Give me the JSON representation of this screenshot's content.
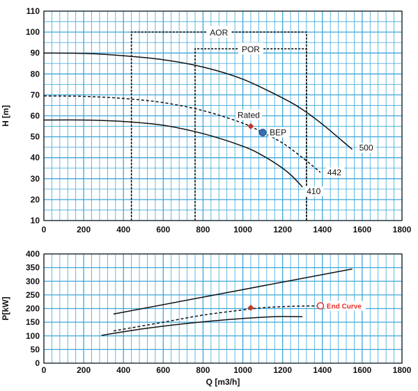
{
  "chart_data": [
    {
      "type": "line",
      "xlabel": "",
      "ylabel": "H [m]",
      "xlim": [
        0,
        1800
      ],
      "ylim": [
        10,
        110
      ],
      "x_ticks": [
        0,
        200,
        400,
        600,
        800,
        1000,
        1200,
        1400,
        1600,
        1800
      ],
      "y_ticks": [
        10,
        20,
        30,
        40,
        50,
        60,
        70,
        80,
        90,
        100,
        110
      ],
      "grid": true,
      "series": [
        {
          "name": "500",
          "style": "solid",
          "x": [
            0,
            200,
            400,
            600,
            800,
            1000,
            1200,
            1300,
            1400,
            1500,
            1550
          ],
          "y": [
            90,
            89.8,
            88.7,
            86.8,
            83.3,
            77.5,
            68.5,
            63,
            56,
            48,
            44
          ]
        },
        {
          "name": "442",
          "style": "dashed",
          "x": [
            0,
            200,
            400,
            600,
            800,
            1000,
            1100,
            1200,
            1300,
            1390
          ],
          "y": [
            69.5,
            69.3,
            68.3,
            66.3,
            62.5,
            56.5,
            52,
            47,
            40,
            33
          ]
        },
        {
          "name": "410",
          "style": "solid",
          "x": [
            0,
            200,
            400,
            600,
            800,
            1000,
            1100,
            1200,
            1250,
            1300
          ],
          "y": [
            58,
            58,
            57.3,
            55.5,
            51.5,
            45.5,
            41,
            35,
            31,
            26
          ]
        }
      ],
      "regions": [
        {
          "label": "AOR",
          "x": [
            440,
            1320
          ],
          "top": 100
        },
        {
          "label": "POR",
          "x": [
            760,
            1320
          ],
          "top": 92
        }
      ],
      "points": [
        {
          "label": "Rated",
          "x": 1040,
          "y": 55,
          "marker": "diamond",
          "color": "#c0392b"
        },
        {
          "label": "BEP",
          "x": 1100,
          "y": 52,
          "marker": "circle",
          "color": "#3a6fb0"
        }
      ],
      "colors": {
        "grid": "#3ea6d8",
        "curve": "#111111"
      }
    },
    {
      "type": "line",
      "xlabel": "Q [m3/h]",
      "ylabel": "P[kW]",
      "xlim": [
        0,
        1800
      ],
      "ylim": [
        0,
        400
      ],
      "x_ticks": [
        0,
        200,
        400,
        600,
        800,
        1000,
        1200,
        1400,
        1600,
        1800
      ],
      "y_ticks": [
        0,
        50,
        100,
        150,
        200,
        250,
        300,
        350,
        400
      ],
      "grid": true,
      "series": [
        {
          "name": "500",
          "style": "solid",
          "x": [
            350,
            1550
          ],
          "y": [
            180,
            345
          ]
        },
        {
          "name": "442",
          "style": "dashed",
          "x": [
            350,
            600,
            800,
            1000,
            1100,
            1200,
            1300,
            1400
          ],
          "y": [
            118,
            150,
            176,
            195,
            203,
            207,
            209,
            210
          ]
        },
        {
          "name": "410",
          "style": "solid",
          "x": [
            290,
            500,
            700,
            900,
            1050,
            1150,
            1200,
            1300
          ],
          "y": [
            102,
            126,
            144,
            158,
            166,
            170,
            171,
            170
          ]
        }
      ],
      "points": [
        {
          "label": "",
          "x": 1040,
          "y": 203,
          "marker": "diamond",
          "color": "#c0392b"
        },
        {
          "label": "End Curve",
          "x": 1390,
          "y": 210,
          "marker": "open-circle",
          "color": "#e0312b"
        }
      ],
      "colors": {
        "grid": "#3ea6d8",
        "curve": "#111111"
      }
    }
  ]
}
